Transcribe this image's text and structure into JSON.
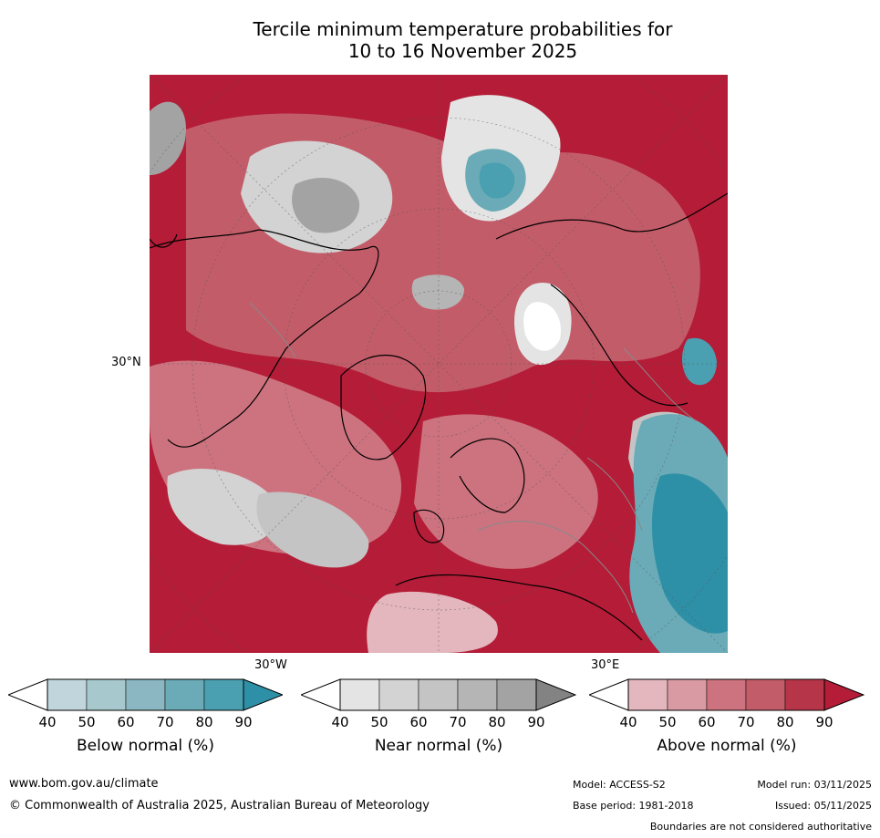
{
  "title": {
    "line1": "Tercile minimum temperature probabilities for",
    "line2": "10 to 16 November 2025"
  },
  "map": {
    "lat_label": "30°N",
    "lon_label_west": "30°W",
    "lon_label_east": "30°E"
  },
  "colorbars": [
    {
      "title": "Below normal (%)",
      "ticks": [
        "40",
        "50",
        "60",
        "70",
        "80",
        "90"
      ],
      "colors": [
        "#ffffff",
        "#c0d6dc",
        "#a7c8cd",
        "#8ab7c1",
        "#6aabb7",
        "#4aa0b0",
        "#2e90a6"
      ]
    },
    {
      "title": "Near normal (%)",
      "ticks": [
        "40",
        "50",
        "60",
        "70",
        "80",
        "90"
      ],
      "colors": [
        "#ffffff",
        "#e4e4e4",
        "#d3d3d3",
        "#c4c4c4",
        "#b5b5b5",
        "#a3a3a3",
        "#838383"
      ]
    },
    {
      "title": "Above normal (%)",
      "ticks": [
        "40",
        "50",
        "60",
        "70",
        "80",
        "90"
      ],
      "colors": [
        "#ffffff",
        "#e3b7bd",
        "#d99aa3",
        "#cd737f",
        "#c35c69",
        "#b63548",
        "#b41c37"
      ]
    }
  ],
  "footer": {
    "website": "www.bom.gov.au/climate",
    "copyright": "© Commonwealth of Australia 2025, Australian Bureau of Meteorology",
    "model": "Model: ACCESS-S2",
    "model_run": "Model run: 03/11/2025",
    "base_period": "Base period: 1981-2018",
    "issued": "Issued: 05/11/2025",
    "disclaimer": "Boundaries are not considered authoritative"
  }
}
